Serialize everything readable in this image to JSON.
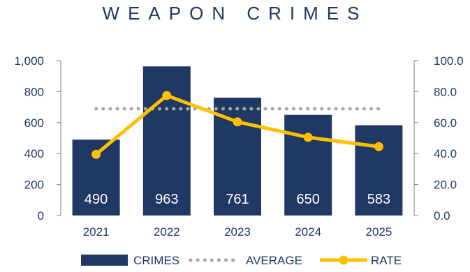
{
  "chart_data": {
    "type": "bar",
    "title": "WEAPON CRIMES",
    "categories": [
      "2021",
      "2022",
      "2023",
      "2024",
      "2025"
    ],
    "series": [
      {
        "name": "CRIMES",
        "kind": "bar",
        "axis": "left",
        "values": [
          490,
          963,
          761,
          650,
          583
        ],
        "color": "#1f3864",
        "data_labels": [
          "490",
          "963",
          "761",
          "650",
          "583"
        ]
      },
      {
        "name": "AVERAGE",
        "kind": "line",
        "style": "dotted",
        "axis": "left",
        "values": [
          689,
          689,
          689,
          689,
          689
        ],
        "color": "#a6a6a6"
      },
      {
        "name": "RATE",
        "kind": "line",
        "axis": "right",
        "values": [
          39.5,
          77.5,
          60.5,
          50.5,
          44.5
        ],
        "color": "#ffc000"
      }
    ],
    "y_left": {
      "min": 0,
      "max": 1000,
      "ticks": [
        "0",
        "200",
        "400",
        "600",
        "800",
        "1,000"
      ]
    },
    "y_right": {
      "min": 0,
      "max": 100,
      "ticks": [
        "0.0",
        "20.0",
        "40.0",
        "60.0",
        "80.0",
        "100.0"
      ]
    },
    "legend": {
      "position": "bottom",
      "entries": [
        "CRIMES",
        "AVERAGE",
        "RATE"
      ]
    },
    "grid": false
  }
}
